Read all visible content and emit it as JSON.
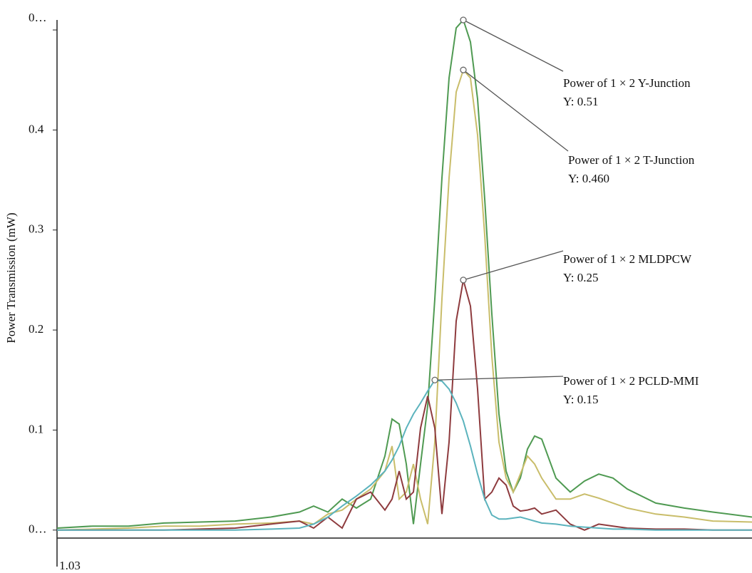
{
  "chart_data": {
    "type": "line",
    "y_label": "Power Transmission (mW)",
    "x": [
      1.03,
      1.04,
      1.05,
      1.06,
      1.07,
      1.08,
      1.09,
      1.098,
      1.102,
      1.106,
      1.11,
      1.114,
      1.118,
      1.122,
      1.124,
      1.126,
      1.128,
      1.13,
      1.132,
      1.134,
      1.136,
      1.138,
      1.14,
      1.142,
      1.144,
      1.146,
      1.148,
      1.15,
      1.152,
      1.154,
      1.156,
      1.158,
      1.16,
      1.162,
      1.164,
      1.166,
      1.17,
      1.174,
      1.178,
      1.182,
      1.186,
      1.19,
      1.198,
      1.206,
      1.214,
      1.225
    ],
    "xlim": [
      1.03,
      1.225
    ],
    "xticks": [
      {
        "value": 1.03,
        "label": "1.03"
      }
    ],
    "ylim": [
      -0.008,
      0.51
    ],
    "yticks": [
      {
        "value": 0,
        "label": "0…"
      },
      0.1,
      0.2,
      0.3,
      0.4,
      {
        "value": 0.5,
        "label": "0…"
      }
    ],
    "series": [
      {
        "name": "Power of 1 × 2 Y-Junction",
        "color": "#4f9a52",
        "values": [
          0.002,
          0.004,
          0.004,
          0.007,
          0.008,
          0.009,
          0.013,
          0.018,
          0.024,
          0.018,
          0.031,
          0.022,
          0.031,
          0.074,
          0.111,
          0.106,
          0.066,
          0.006,
          0.066,
          0.124,
          0.231,
          0.352,
          0.452,
          0.502,
          0.51,
          0.488,
          0.431,
          0.331,
          0.216,
          0.116,
          0.059,
          0.038,
          0.052,
          0.081,
          0.094,
          0.091,
          0.052,
          0.038,
          0.049,
          0.056,
          0.052,
          0.041,
          0.027,
          0.022,
          0.018,
          0.013
        ],
        "value_labels": [
          null,
          null,
          null,
          null,
          null,
          null,
          null,
          null,
          null,
          null,
          null,
          null,
          null,
          null,
          null,
          null,
          null,
          null,
          null,
          null,
          null,
          null,
          null,
          null,
          "Y: 0.51",
          null,
          null,
          null,
          null,
          null,
          null,
          null,
          null,
          null,
          null,
          null,
          null,
          null,
          null,
          null,
          null,
          null,
          null,
          null,
          null,
          null
        ]
      },
      {
        "name": "Power of 1 × 2 T-Junction",
        "color": "#c9bd6a",
        "values": [
          0,
          0.001,
          0.002,
          0.004,
          0.004,
          0.006,
          0.007,
          0.009,
          0.006,
          0.016,
          0.02,
          0.031,
          0.041,
          0.059,
          0.084,
          0.031,
          0.038,
          0.066,
          0.031,
          0.006,
          0.088,
          0.231,
          0.352,
          0.438,
          0.46,
          0.452,
          0.395,
          0.295,
          0.174,
          0.088,
          0.052,
          0.038,
          0.056,
          0.074,
          0.066,
          0.052,
          0.031,
          0.031,
          0.036,
          0.032,
          0.027,
          0.022,
          0.016,
          0.013,
          0.009,
          0.008
        ],
        "value_labels": [
          null,
          null,
          null,
          null,
          null,
          null,
          null,
          null,
          null,
          null,
          null,
          null,
          null,
          null,
          null,
          null,
          null,
          null,
          null,
          null,
          null,
          null,
          null,
          null,
          "Y: 0.460",
          null,
          null,
          null,
          null,
          null,
          null,
          null,
          null,
          null,
          null,
          null,
          null,
          null,
          null,
          null,
          null,
          null,
          null,
          null,
          null,
          null
        ]
      },
      {
        "name": "Power of 1 × 2 MLDPCW",
        "color": "#8e3b3e",
        "values": [
          0,
          0,
          0,
          0,
          0.001,
          0.002,
          0.006,
          0.009,
          0.002,
          0.013,
          0.002,
          0.031,
          0.038,
          0.02,
          0.031,
          0.059,
          0.031,
          0.038,
          0.102,
          0.134,
          0.102,
          0.016,
          0.088,
          0.209,
          0.25,
          0.224,
          0.141,
          0.031,
          0.038,
          0.052,
          0.045,
          0.024,
          0.019,
          0.02,
          0.022,
          0.016,
          0.02,
          0.006,
          0,
          0.006,
          0.004,
          0.002,
          0.001,
          0.001,
          0,
          0
        ],
        "value_labels": [
          null,
          null,
          null,
          null,
          null,
          null,
          null,
          null,
          null,
          null,
          null,
          null,
          null,
          null,
          null,
          null,
          null,
          null,
          null,
          null,
          null,
          null,
          null,
          null,
          "Y: 0.25",
          null,
          null,
          null,
          null,
          null,
          null,
          null,
          null,
          null,
          null,
          null,
          null,
          null,
          null,
          null,
          null,
          null,
          null,
          null,
          null,
          null
        ]
      },
      {
        "name": "Power of 1 × 2 PCLD-MMI",
        "color": "#5bb3bd",
        "values": [
          0,
          0,
          0,
          0,
          0,
          0,
          0.001,
          0.002,
          0.006,
          0.013,
          0.024,
          0.034,
          0.045,
          0.059,
          0.07,
          0.084,
          0.102,
          0.116,
          0.127,
          0.139,
          0.15,
          0.149,
          0.141,
          0.127,
          0.109,
          0.084,
          0.056,
          0.031,
          0.015,
          0.011,
          0.011,
          0.012,
          0.013,
          0.011,
          0.009,
          0.007,
          0.006,
          0.004,
          0.003,
          0.002,
          0.001,
          0.001,
          0,
          0,
          0,
          0
        ],
        "value_labels": [
          null,
          null,
          null,
          null,
          null,
          null,
          null,
          null,
          null,
          null,
          null,
          null,
          null,
          null,
          null,
          null,
          null,
          null,
          null,
          null,
          "Y: 0.15",
          null,
          null,
          null,
          null,
          null,
          null,
          null,
          null,
          null,
          null,
          null,
          null,
          null,
          null,
          null,
          null,
          null,
          null,
          null,
          null,
          null,
          null,
          null,
          null,
          null
        ]
      }
    ]
  }
}
